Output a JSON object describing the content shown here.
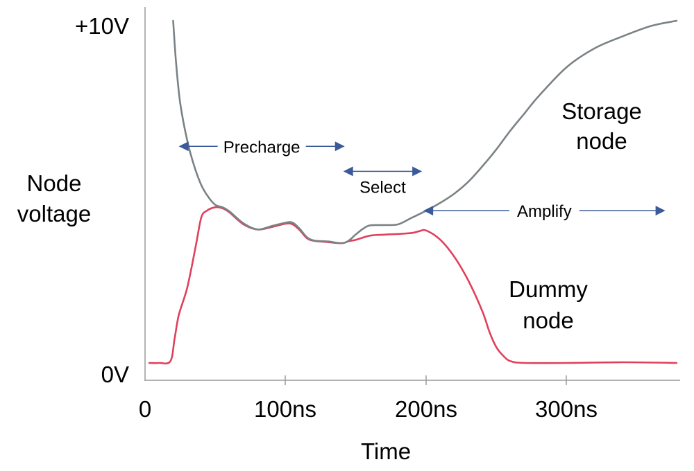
{
  "chart_data": {
    "type": "line",
    "xlabel": "Time",
    "ylabel_lines": [
      "Node",
      "voltage"
    ],
    "x_ticks": [
      {
        "value": 0,
        "label": "0"
      },
      {
        "value": 100,
        "label": "100ns"
      },
      {
        "value": 200,
        "label": "200ns"
      },
      {
        "value": 300,
        "label": "300ns"
      }
    ],
    "y_ticks": [
      {
        "value": 0,
        "label": "0V"
      },
      {
        "value": 10,
        "label": "+10V"
      }
    ],
    "xlim": [
      0,
      378
    ],
    "ylim": [
      -0.25,
      10.1
    ],
    "grid": false,
    "legend": "none",
    "series": [
      {
        "name": "Storage node",
        "color": "#7a8285",
        "x": [
          20,
          22,
          25,
          30,
          35,
          40,
          45,
          50,
          55,
          60,
          70,
          80,
          90,
          100,
          105,
          110,
          115,
          120,
          130,
          140,
          145,
          150,
          155,
          160,
          170,
          180,
          190,
          200,
          210,
          220,
          230,
          240,
          250,
          260,
          270,
          280,
          300,
          320,
          340,
          360,
          378
        ],
        "y": [
          10.0,
          8.8,
          7.6,
          6.5,
          5.75,
          5.2,
          4.85,
          4.62,
          4.55,
          4.43,
          4.08,
          3.9,
          4.0,
          4.1,
          4.1,
          3.92,
          3.68,
          3.58,
          3.55,
          3.5,
          3.58,
          3.76,
          3.92,
          4.02,
          4.03,
          4.05,
          4.25,
          4.45,
          4.68,
          4.95,
          5.3,
          5.75,
          6.25,
          6.8,
          7.3,
          7.8,
          8.65,
          9.2,
          9.55,
          9.85,
          10.0
        ]
      },
      {
        "name": "Dummy node",
        "color": "#e0405c",
        "x": [
          3,
          10,
          18,
          21,
          24,
          30,
          36,
          40,
          44,
          50,
          55,
          60,
          70,
          80,
          90,
          100,
          105,
          110,
          115,
          120,
          130,
          140,
          145,
          150,
          160,
          170,
          180,
          190,
          195,
          200,
          210,
          220,
          230,
          240,
          245,
          250,
          255,
          260,
          270,
          300,
          340,
          378
        ],
        "y": [
          0.0,
          0.0,
          0.05,
          0.7,
          1.4,
          2.2,
          3.4,
          4.25,
          4.45,
          4.55,
          4.52,
          4.4,
          4.05,
          3.9,
          3.97,
          4.07,
          4.05,
          3.88,
          3.65,
          3.57,
          3.53,
          3.5,
          3.56,
          3.6,
          3.72,
          3.75,
          3.77,
          3.8,
          3.85,
          3.87,
          3.6,
          3.1,
          2.4,
          1.5,
          0.9,
          0.45,
          0.2,
          0.05,
          0.0,
          0.0,
          0.02,
          0.0
        ]
      }
    ],
    "annotations": [
      {
        "text": "Storage node",
        "lines": [
          "Storage",
          "node"
        ]
      },
      {
        "text": "Dummy node",
        "lines": [
          "Dummy",
          "node"
        ]
      },
      {
        "text": "Precharge",
        "x_start": 24,
        "x_end": 142,
        "y": 6.33
      },
      {
        "text": "Select",
        "x_start": 141,
        "x_end": 197,
        "y": 5.6
      },
      {
        "text": "Amplify",
        "x_start": 198,
        "x_end": 370,
        "y": 4.45
      }
    ],
    "arrow_color": "#3a5a9a"
  }
}
